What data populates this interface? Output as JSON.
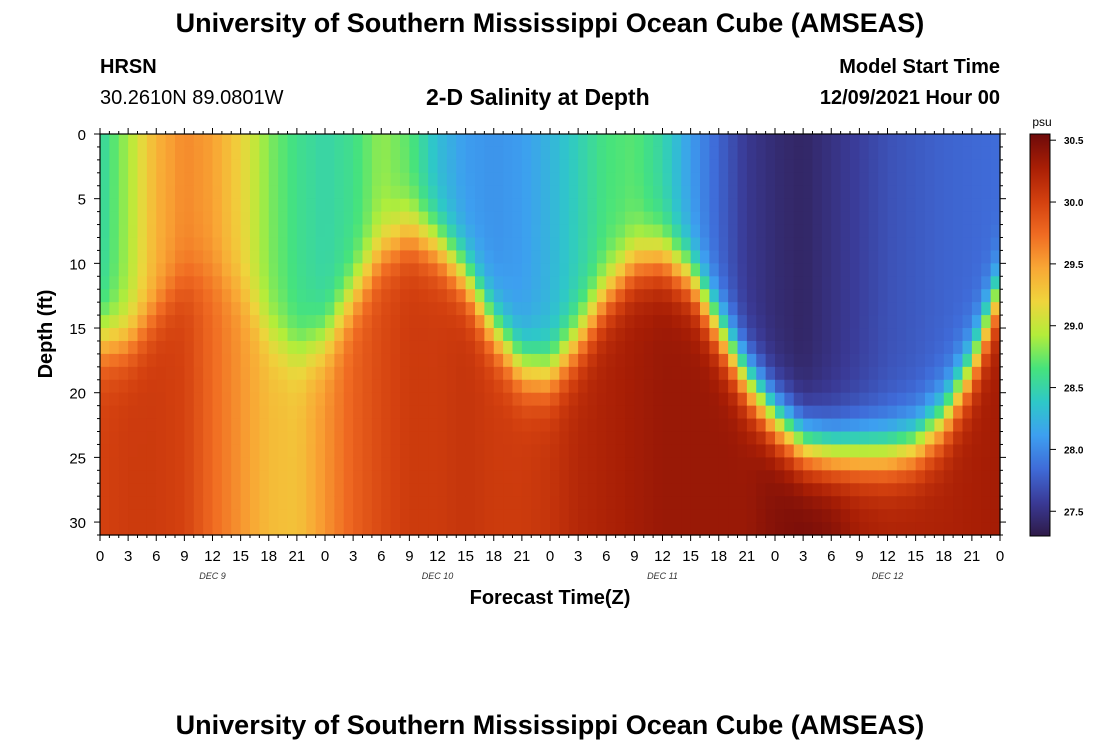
{
  "header": {
    "title": "University of Southern Mississippi Ocean Cube (AMSEAS)",
    "station": "HRSN",
    "coords": "30.2610N  89.0801W",
    "subtitle": "2-D Salinity at Depth",
    "model_start_label": "Model Start Time",
    "model_start_value": "12/09/2021 Hour 00"
  },
  "footer": {
    "title": "University of Southern Mississippi Ocean Cube (AMSEAS)"
  },
  "chart_data": {
    "type": "heatmap",
    "title": "2-D Salinity at Depth",
    "xlabel": "Forecast Time(Z)",
    "ylabel": "Depth (ft)",
    "x_range_hours": [
      0,
      96
    ],
    "y_range_ft": [
      0,
      31
    ],
    "x_tick_labels": [
      "0",
      "3",
      "6",
      "9",
      "12",
      "15",
      "18",
      "21",
      "0",
      "3",
      "6",
      "9",
      "12",
      "15",
      "18",
      "21",
      "0",
      "3",
      "6",
      "9",
      "12",
      "15",
      "18",
      "21",
      "0",
      "3",
      "6",
      "9",
      "12",
      "15",
      "18",
      "21",
      "0"
    ],
    "day_labels": [
      {
        "label": "DEC 9",
        "hour": 12
      },
      {
        "label": "DEC 10",
        "hour": 36
      },
      {
        "label": "DEC 11",
        "hour": 60
      },
      {
        "label": "DEC 12",
        "hour": 84
      }
    ],
    "y_ticks": [
      0,
      5,
      10,
      15,
      20,
      25,
      30
    ],
    "colorbar": {
      "unit": "psu",
      "range": [
        27.3,
        30.55
      ],
      "ticks": [
        "27.5",
        "28.0",
        "28.5",
        "29.0",
        "29.5",
        "30.0",
        "30.5"
      ],
      "colors": [
        "#2e1a47",
        "#3a3a96",
        "#3f6bd8",
        "#3d9ff0",
        "#2ec8c8",
        "#46e37c",
        "#b3ed3a",
        "#efd43c",
        "#f9a735",
        "#f06b22",
        "#d3400f",
        "#a81e05",
        "#6e0a0a"
      ]
    },
    "isoline_depth_ft": [
      [
        0,
        16
      ],
      [
        3,
        16
      ],
      [
        6,
        14
      ],
      [
        8,
        12
      ],
      [
        10,
        11
      ],
      [
        12.5,
        11
      ],
      [
        15,
        12
      ],
      [
        18,
        15.5
      ],
      [
        21,
        17
      ],
      [
        24,
        16
      ],
      [
        27,
        12.5
      ],
      [
        30,
        9
      ],
      [
        33,
        7.5
      ],
      [
        36,
        8.5
      ],
      [
        39,
        11
      ],
      [
        42,
        15
      ],
      [
        45,
        18
      ],
      [
        48,
        18.5
      ],
      [
        51,
        16
      ],
      [
        54,
        12.5
      ],
      [
        57,
        10
      ],
      [
        60,
        9.5
      ],
      [
        63,
        11
      ],
      [
        66,
        15
      ],
      [
        69,
        19
      ],
      [
        72,
        22
      ],
      [
        75,
        24
      ],
      [
        78,
        24.5
      ],
      [
        81,
        24.5
      ],
      [
        84,
        24.5
      ],
      [
        87,
        24
      ],
      [
        90,
        22
      ],
      [
        93,
        18
      ],
      [
        96,
        12
      ]
    ],
    "surface_salinity_psu": [
      [
        0,
        28.5
      ],
      [
        3,
        28.9
      ],
      [
        6,
        29.4
      ],
      [
        9,
        29.6
      ],
      [
        12,
        29.5
      ],
      [
        15,
        29.2
      ],
      [
        18,
        28.8
      ],
      [
        21,
        28.6
      ],
      [
        24,
        28.5
      ],
      [
        27,
        28.6
      ],
      [
        30,
        28.85
      ],
      [
        33,
        28.7
      ],
      [
        36,
        28.3
      ],
      [
        39,
        28.1
      ],
      [
        42,
        28.05
      ],
      [
        45,
        28.1
      ],
      [
        48,
        28.25
      ],
      [
        51,
        28.45
      ],
      [
        54,
        28.65
      ],
      [
        57,
        28.7
      ],
      [
        60,
        28.5
      ],
      [
        63,
        28.1
      ],
      [
        66,
        27.8
      ],
      [
        69,
        27.55
      ],
      [
        72,
        27.45
      ],
      [
        75,
        27.4
      ],
      [
        78,
        27.5
      ],
      [
        84,
        27.7
      ],
      [
        90,
        27.8
      ],
      [
        96,
        27.85
      ]
    ],
    "bottom_salinity_psu": [
      [
        0,
        30.0
      ],
      [
        3,
        30.05
      ],
      [
        6,
        30.05
      ],
      [
        9,
        30.0
      ],
      [
        12,
        29.75
      ],
      [
        15,
        29.55
      ],
      [
        18,
        29.35
      ],
      [
        21,
        29.3
      ],
      [
        24,
        29.55
      ],
      [
        27,
        29.8
      ],
      [
        30,
        29.95
      ],
      [
        33,
        30.05
      ],
      [
        36,
        30.05
      ],
      [
        39,
        30.1
      ],
      [
        42,
        30.05
      ],
      [
        45,
        30.05
      ],
      [
        48,
        30.1
      ],
      [
        51,
        30.2
      ],
      [
        54,
        30.25
      ],
      [
        57,
        30.3
      ],
      [
        60,
        30.35
      ],
      [
        63,
        30.35
      ],
      [
        66,
        30.35
      ],
      [
        69,
        30.35
      ],
      [
        72,
        30.45
      ],
      [
        75,
        30.5
      ],
      [
        78,
        30.45
      ],
      [
        81,
        30.3
      ],
      [
        84,
        30.25
      ],
      [
        90,
        30.25
      ],
      [
        96,
        30.3
      ]
    ]
  }
}
